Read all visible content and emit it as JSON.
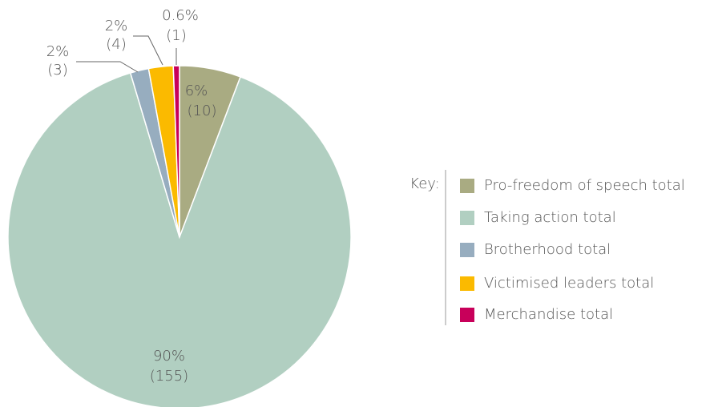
{
  "chart_data": {
    "type": "pie",
    "categories": [
      "Pro-freedom of speech total",
      "Taking action total",
      "Brotherhood total",
      "Victimised leaders total",
      "Merchandise total"
    ],
    "values": [
      10,
      155,
      3,
      4,
      1
    ],
    "value_labels": [
      "(10)",
      "(155)",
      "(3)",
      "(4)",
      "(1)"
    ],
    "percent_labels": [
      "6%",
      "90%",
      "2%",
      "2%",
      "0.6%"
    ],
    "colors": [
      "#a9ab82",
      "#b1cfc1",
      "#97adbf",
      "#fbba00",
      "#c8005a"
    ],
    "legend_title": "Key:",
    "legend": "right"
  }
}
